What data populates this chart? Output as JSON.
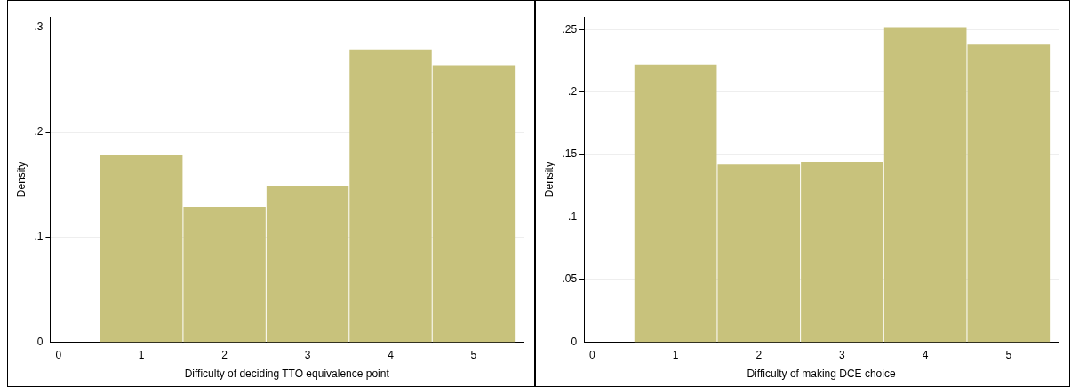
{
  "chart_data": [
    {
      "type": "histogram",
      "xlabel": "Difficulty of deciding TTO equivalence point",
      "ylabel": "Density",
      "bins": [
        0.5,
        1.5,
        2.5,
        3.5,
        4.5,
        5.5
      ],
      "values": [
        0.178,
        0.129,
        0.149,
        0.279,
        0.264
      ],
      "color": "#c8c27c",
      "xlim": [
        -0.1,
        5.6
      ],
      "xticks": [
        0,
        1,
        2,
        3,
        4,
        5
      ],
      "ylim": [
        0,
        0.31
      ],
      "yticks": [
        0,
        {
          "value": 0.1,
          "label": ".1"
        },
        {
          "value": 0.2,
          "label": ".2"
        },
        {
          "value": 0.3,
          "label": ".3"
        }
      ],
      "grid": "y",
      "legend": false
    },
    {
      "type": "histogram",
      "xlabel": "Difficulty of making DCE choice",
      "ylabel": "Density",
      "bins": [
        0.5,
        1.5,
        2.5,
        3.5,
        4.5,
        5.5
      ],
      "values": [
        0.222,
        0.142,
        0.144,
        0.252,
        0.238
      ],
      "color": "#c8c27c",
      "xlim": [
        -0.1,
        5.6
      ],
      "xticks": [
        0,
        1,
        2,
        3,
        4,
        5
      ],
      "ylim": [
        0,
        0.26
      ],
      "yticks": [
        0,
        {
          "value": 0.05,
          "label": ".05"
        },
        {
          "value": 0.1,
          "label": ".1"
        },
        {
          "value": 0.15,
          "label": ".15"
        },
        {
          "value": 0.2,
          "label": ".2"
        },
        {
          "value": 0.25,
          "label": ".25"
        }
      ],
      "grid": "y",
      "legend": false
    }
  ]
}
